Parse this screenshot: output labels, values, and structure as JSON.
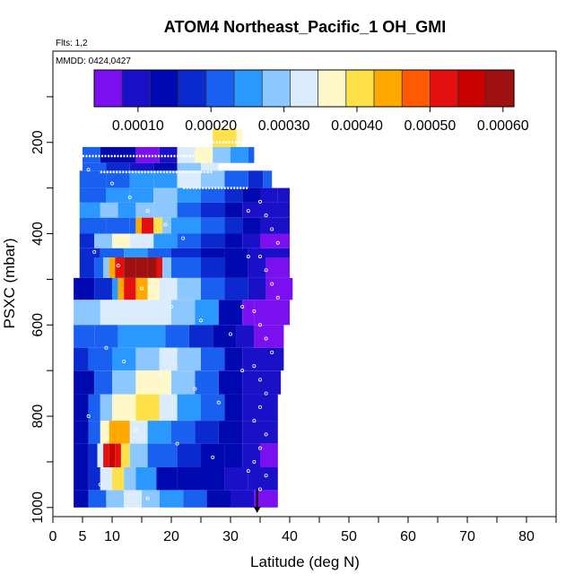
{
  "chart_data": {
    "type": "heatmap",
    "title": "ATOM4 Northeast_Pacific_1 OH_GMI",
    "flights_note": "Flts: 1,2",
    "date_note": "MMDD: 0424,0427",
    "xlabel": "Latitude (deg N)",
    "ylabel": "PSXC (mbar)",
    "x_ticks": [
      0,
      5,
      10,
      20,
      30,
      40,
      50,
      60,
      70,
      80
    ],
    "y_ticks": [
      200,
      400,
      600,
      800,
      1000
    ],
    "xlim": [
      0,
      85
    ],
    "ylim": [
      1020,
      0
    ],
    "y_reversed": true,
    "colorbar": {
      "vmin": 4e-05,
      "vmax": 0.000615,
      "ticks": [
        "0.00010",
        "0.00020",
        "0.00030",
        "0.00040",
        "0.00050",
        "0.00060"
      ],
      "tick_values": [
        0.0001,
        0.0002,
        0.0003,
        0.0004,
        0.0005,
        0.0006
      ],
      "palette": [
        "#7a10ee",
        "#1a10c8",
        "#0008b0",
        "#0a2ad0",
        "#1a60f0",
        "#2a98ff",
        "#8cc8ff",
        "#dcecff",
        "#fff8c8",
        "#ffe24a",
        "#ffa800",
        "#ff5a00",
        "#e41010",
        "#c80000",
        "#a01010"
      ]
    },
    "layers": [
      {
        "p_top": 170,
        "p_bot": 210,
        "lat_min": 27,
        "lat_max": 32,
        "segments": [
          [
            27,
            0.00042
          ],
          [
            29,
            0.0004
          ],
          [
            31,
            0.00035
          ]
        ]
      },
      {
        "p_top": 210,
        "p_bot": 245,
        "lat_min": 5,
        "lat_max": 34,
        "segments": [
          [
            5,
            0.0002
          ],
          [
            8,
            0.00012
          ],
          [
            14,
            7e-05
          ],
          [
            18,
            0.0001
          ],
          [
            21,
            0.00031
          ],
          [
            24,
            0.00036
          ],
          [
            27,
            0.0003
          ],
          [
            30,
            0.00025
          ],
          [
            33,
            0.00023
          ]
        ]
      },
      {
        "p_top": 245,
        "p_bot": 262,
        "lat_min": 5,
        "lat_max": 28,
        "segments": [
          [
            5,
            0.0002
          ],
          [
            9,
            0.00018
          ],
          [
            13,
            0.0001
          ],
          [
            17,
            0.00012
          ],
          [
            21,
            0.0003
          ],
          [
            25,
            0.00033
          ]
        ]
      },
      {
        "p_top": 262,
        "p_bot": 300,
        "lat_min": 4.5,
        "lat_max": 37,
        "segments": [
          [
            4.5,
            0.00022
          ],
          [
            9,
            0.00022
          ],
          [
            13,
            0.00024
          ],
          [
            17,
            0.00025
          ],
          [
            21,
            0.00031
          ],
          [
            25,
            0.00028
          ],
          [
            29,
            0.00022
          ],
          [
            33,
            0.00016
          ],
          [
            35.5,
            0.0002
          ]
        ]
      },
      {
        "p_top": 300,
        "p_bot": 332,
        "lat_min": 4.5,
        "lat_max": 40,
        "segments": [
          [
            4.5,
            0.00022
          ],
          [
            9,
            0.00025
          ],
          [
            13,
            0.00024
          ],
          [
            17,
            0.00028
          ],
          [
            21,
            0.00026
          ],
          [
            25,
            0.00022
          ],
          [
            29,
            0.00018
          ],
          [
            32,
            0.00012
          ],
          [
            35,
            8e-05
          ],
          [
            38,
            0.00011
          ]
        ]
      },
      {
        "p_top": 332,
        "p_bot": 365,
        "lat_min": 4.5,
        "lat_max": 40,
        "segments": [
          [
            4.5,
            0.00024
          ],
          [
            8,
            0.00028
          ],
          [
            11,
            0.00026
          ],
          [
            14,
            0.0003
          ],
          [
            17,
            0.00028
          ],
          [
            21,
            0.00023
          ],
          [
            25,
            0.00018
          ],
          [
            29,
            0.00015
          ],
          [
            32,
            0.0001
          ],
          [
            35,
            8e-05
          ]
        ]
      },
      {
        "p_top": 365,
        "p_bot": 400,
        "lat_min": 4.5,
        "lat_max": 40,
        "segments": [
          [
            4.5,
            0.0002
          ],
          [
            9,
            0.00022
          ],
          [
            13,
            0.00023
          ],
          [
            14,
            0.00043
          ],
          [
            15,
            0.0005
          ],
          [
            17,
            0.0004
          ],
          [
            18.5,
            0.0003
          ],
          [
            20,
            0.00024
          ],
          [
            25,
            0.0002
          ],
          [
            29,
            0.00016
          ],
          [
            32,
            0.00012
          ],
          [
            35,
            8e-05
          ]
        ]
      },
      {
        "p_top": 400,
        "p_bot": 432,
        "lat_min": 4.5,
        "lat_max": 40,
        "segments": [
          [
            4.5,
            0.00018
          ],
          [
            7,
            0.0003
          ],
          [
            10,
            0.00035
          ],
          [
            13,
            0.00033
          ],
          [
            17,
            0.00026
          ],
          [
            21,
            0.00022
          ],
          [
            25,
            0.00018
          ],
          [
            29,
            0.00015
          ],
          [
            32,
            0.0001
          ],
          [
            35,
            7e-05
          ]
        ]
      },
      {
        "p_top": 432,
        "p_bot": 452,
        "lat_min": 4.5,
        "lat_max": 40,
        "segments": [
          [
            4.5,
            0.00016
          ],
          [
            8,
            0.00022
          ],
          [
            12,
            0.00024
          ],
          [
            16,
            0.00021
          ],
          [
            20,
            0.00018
          ],
          [
            25,
            0.00015
          ],
          [
            29,
            0.00012
          ],
          [
            33,
            9e-05
          ]
        ]
      },
      {
        "p_top": 452,
        "p_bot": 497,
        "lat_min": 4.5,
        "lat_max": 40,
        "segments": [
          [
            4.5,
            0.00016
          ],
          [
            7,
            0.0002
          ],
          [
            8.5,
            0.0003
          ],
          [
            9.5,
            0.00045
          ],
          [
            10.5,
            0.00052
          ],
          [
            12,
            0.00058
          ],
          [
            14,
            0.0006
          ],
          [
            16,
            0.00058
          ],
          [
            17.5,
            0.0005
          ],
          [
            18.5,
            0.0003
          ],
          [
            20,
            0.00022
          ],
          [
            25,
            0.00018
          ],
          [
            29,
            0.00014
          ],
          [
            33,
            0.0001
          ],
          [
            36,
            7e-05
          ]
        ]
      },
      {
        "p_top": 497,
        "p_bot": 545,
        "lat_min": 3.5,
        "lat_max": 40.5,
        "segments": [
          [
            3.5,
            0.00014
          ],
          [
            7,
            0.00019
          ],
          [
            10,
            0.00026
          ],
          [
            11,
            0.00046
          ],
          [
            12,
            0.00052
          ],
          [
            14,
            0.00044
          ],
          [
            16,
            0.00038
          ],
          [
            18,
            0.00033
          ],
          [
            21,
            0.00028
          ],
          [
            25,
            0.00022
          ],
          [
            29,
            0.00016
          ],
          [
            33,
            0.0001
          ],
          [
            36,
            7e-05
          ]
        ]
      },
      {
        "p_top": 545,
        "p_bot": 600,
        "lat_min": 3.5,
        "lat_max": 40,
        "segments": [
          [
            3.5,
            0.0003
          ],
          [
            8,
            0.00032
          ],
          [
            12,
            0.00033
          ],
          [
            16,
            0.00033
          ],
          [
            20,
            0.0003
          ],
          [
            24,
            0.00025
          ],
          [
            28,
            0.00014
          ],
          [
            32,
            6e-05
          ],
          [
            34,
            5e-05
          ],
          [
            35,
            7e-05
          ]
        ]
      },
      {
        "p_top": 600,
        "p_bot": 650,
        "lat_min": 3.5,
        "lat_max": 39,
        "segments": [
          [
            3.5,
            0.00021
          ],
          [
            7,
            0.00023
          ],
          [
            11,
            0.00025
          ],
          [
            15,
            0.00024
          ],
          [
            19,
            0.00021
          ],
          [
            23,
            0.00018
          ],
          [
            27,
            0.00014
          ],
          [
            31,
            0.0001
          ],
          [
            34,
            7e-05
          ]
        ]
      },
      {
        "p_top": 650,
        "p_bot": 700,
        "lat_min": 3.5,
        "lat_max": 39,
        "segments": [
          [
            3.5,
            0.00016
          ],
          [
            6,
            0.0002
          ],
          [
            10,
            0.00026
          ],
          [
            14,
            0.0003
          ],
          [
            18,
            0.00033
          ],
          [
            21,
            0.0003
          ],
          [
            25,
            0.00022
          ],
          [
            29,
            0.00014
          ],
          [
            32,
            0.0001
          ],
          [
            35,
            8e-05
          ]
        ]
      },
      {
        "p_top": 700,
        "p_bot": 752,
        "lat_min": 3.5,
        "lat_max": 38.5,
        "segments": [
          [
            3.5,
            0.00015
          ],
          [
            7,
            0.00023
          ],
          [
            10,
            0.0003
          ],
          [
            14,
            0.00036
          ],
          [
            17,
            0.00035
          ],
          [
            20,
            0.0003
          ],
          [
            24,
            0.00022
          ],
          [
            28,
            0.00015
          ],
          [
            32,
            0.0001
          ],
          [
            35,
            8e-05
          ]
        ]
      },
      {
        "p_top": 752,
        "p_bot": 810,
        "lat_min": 3.5,
        "lat_max": 38,
        "segments": [
          [
            3.5,
            0.00014
          ],
          [
            6,
            0.0002
          ],
          [
            8,
            0.0003
          ],
          [
            10,
            0.00038
          ],
          [
            14,
            0.0004
          ],
          [
            18,
            0.00034
          ],
          [
            21,
            0.00026
          ],
          [
            25,
            0.0002
          ],
          [
            29,
            0.00015
          ],
          [
            32,
            0.0001
          ],
          [
            35,
            8e-05
          ]
        ]
      },
      {
        "p_top": 810,
        "p_bot": 860,
        "lat_min": 3.5,
        "lat_max": 38,
        "segments": [
          [
            3.5,
            0.00014
          ],
          [
            6,
            0.0002
          ],
          [
            8,
            0.00035
          ],
          [
            9.5,
            0.00046
          ],
          [
            11,
            0.00044
          ],
          [
            13,
            0.00032
          ],
          [
            16,
            0.00026
          ],
          [
            20,
            0.00022
          ],
          [
            24,
            0.00018
          ],
          [
            28,
            0.00014
          ],
          [
            32,
            0.0001
          ],
          [
            35,
            8e-05
          ]
        ]
      },
      {
        "p_top": 860,
        "p_bot": 912,
        "lat_min": 3.5,
        "lat_max": 38,
        "segments": [
          [
            3.5,
            0.00013
          ],
          [
            6,
            0.00018
          ],
          [
            7.5,
            0.00033
          ],
          [
            8.5,
            0.0005
          ],
          [
            9.5,
            0.00055
          ],
          [
            10.5,
            0.0005
          ],
          [
            11.5,
            0.0004
          ],
          [
            13,
            0.0003
          ],
          [
            16,
            0.0002
          ],
          [
            21,
            0.00016
          ],
          [
            25,
            0.00015
          ],
          [
            29,
            0.00012
          ],
          [
            32,
            9e-05
          ],
          [
            35,
            7e-05
          ]
        ]
      },
      {
        "p_top": 912,
        "p_bot": 962,
        "lat_min": 3.5,
        "lat_max": 38,
        "segments": [
          [
            3.5,
            0.00013
          ],
          [
            6,
            0.00018
          ],
          [
            8,
            0.00032
          ],
          [
            10,
            0.00042
          ],
          [
            12,
            0.0003
          ],
          [
            14,
            0.00026
          ],
          [
            17.5,
            0.00014
          ],
          [
            21,
            0.00013
          ],
          [
            25,
            0.00012
          ],
          [
            29,
            0.0001
          ],
          [
            33,
            8e-05
          ]
        ]
      },
      {
        "p_top": 962,
        "p_bot": 1000,
        "lat_min": 3.5,
        "lat_max": 38,
        "segments": [
          [
            3.5,
            0.00012
          ],
          [
            6,
            0.0002
          ],
          [
            9,
            0.00028
          ],
          [
            12,
            0.00033
          ],
          [
            15,
            0.0003
          ],
          [
            18,
            0.00024
          ],
          [
            22,
            0.0002
          ],
          [
            26,
            0.00015
          ],
          [
            30,
            0.0001
          ],
          [
            34,
            7e-05
          ]
        ]
      }
    ],
    "flight_tracks": [
      {
        "p": 230,
        "lat_from": 5,
        "lat_to": 24
      },
      {
        "p": 265,
        "lat_from": 8,
        "lat_to": 27
      },
      {
        "p": 300,
        "lat_from": 22,
        "lat_to": 33
      },
      {
        "p": 200,
        "lat_from": 27,
        "lat_to": 32
      }
    ],
    "scatter_points": [
      [
        6,
        260
      ],
      [
        10,
        290
      ],
      [
        13,
        320
      ],
      [
        16,
        350
      ],
      [
        19,
        380
      ],
      [
        22,
        410
      ],
      [
        7,
        440
      ],
      [
        11,
        470
      ],
      [
        15,
        520
      ],
      [
        20,
        560
      ],
      [
        25,
        590
      ],
      [
        30,
        620
      ],
      [
        9,
        650
      ],
      [
        12,
        680
      ],
      [
        18,
        710
      ],
      [
        24,
        740
      ],
      [
        28,
        770
      ],
      [
        6,
        800
      ],
      [
        14,
        830
      ],
      [
        21,
        860
      ],
      [
        27,
        890
      ],
      [
        33,
        920
      ],
      [
        8,
        950
      ],
      [
        16,
        980
      ],
      [
        35,
        330
      ],
      [
        36,
        360
      ],
      [
        37,
        390
      ],
      [
        38,
        420
      ],
      [
        35,
        450
      ],
      [
        36,
        480
      ],
      [
        37,
        510
      ],
      [
        38,
        540
      ],
      [
        34,
        570
      ],
      [
        35,
        600
      ],
      [
        36,
        630
      ],
      [
        37,
        660
      ],
      [
        34,
        690
      ],
      [
        35,
        720
      ],
      [
        36,
        750
      ],
      [
        35,
        780
      ],
      [
        34,
        810
      ],
      [
        36,
        840
      ],
      [
        35,
        870
      ],
      [
        34,
        900
      ],
      [
        36,
        930
      ],
      [
        35,
        960
      ],
      [
        33,
        350
      ],
      [
        33,
        450
      ],
      [
        32,
        560
      ],
      [
        32,
        700
      ]
    ],
    "marker": {
      "lat": 34.5,
      "p": 1000
    }
  }
}
